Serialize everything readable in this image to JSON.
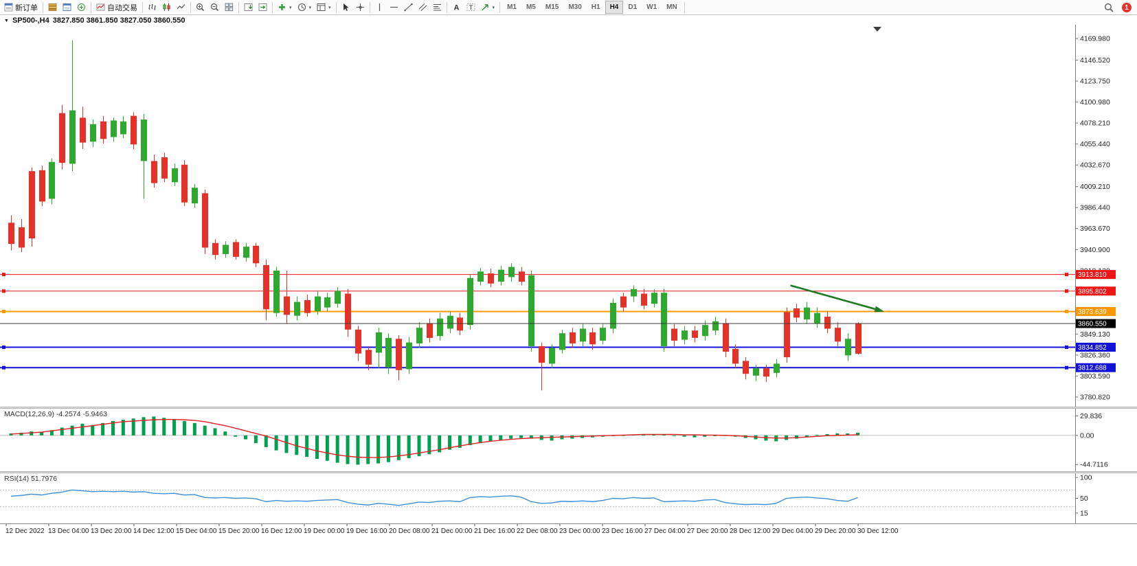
{
  "toolbar": {
    "items": [
      {
        "name": "new-order-button",
        "icon": "new-order",
        "label": "新订单"
      },
      {
        "name": "sep"
      },
      {
        "name": "market-watch-button",
        "icon": "market-watch"
      },
      {
        "name": "data-window-button",
        "icon": "data-window"
      },
      {
        "name": "navigator-button",
        "icon": "navigator"
      },
      {
        "name": "sep"
      },
      {
        "name": "autotrading-button",
        "icon": "autotrading",
        "label": "自动交易"
      },
      {
        "name": "sep"
      },
      {
        "name": "bar-chart-button",
        "icon": "bars"
      },
      {
        "name": "candlestick-chart-button",
        "icon": "candles"
      },
      {
        "name": "line-chart-button",
        "icon": "line"
      },
      {
        "name": "sep"
      },
      {
        "name": "zoom-in-button",
        "icon": "zoom-in"
      },
      {
        "name": "zoom-out-button",
        "icon": "zoom-out"
      },
      {
        "name": "tile-windows-button",
        "icon": "tile"
      },
      {
        "name": "sep"
      },
      {
        "name": "auto-scroll-button",
        "icon": "auto-scroll"
      },
      {
        "name": "chart-shift-button",
        "icon": "chart-shift"
      },
      {
        "name": "sep"
      },
      {
        "name": "add-indicator-button",
        "icon": "indicator-plus",
        "caret": true
      },
      {
        "name": "period-selector-button",
        "icon": "clock",
        "caret": true
      },
      {
        "name": "template-button",
        "icon": "template",
        "caret": true
      },
      {
        "name": "sep"
      },
      {
        "name": "cursor-button",
        "icon": "cursor"
      },
      {
        "name": "crosshair-button",
        "icon": "crosshair"
      },
      {
        "name": "sep"
      },
      {
        "name": "vertical-line-button",
        "icon": "vline"
      },
      {
        "name": "horizontal-line-button",
        "icon": "hline"
      },
      {
        "name": "trendline-button",
        "icon": "trend"
      },
      {
        "name": "channel-button",
        "icon": "channel"
      },
      {
        "name": "fibonacci-button",
        "icon": "fibo"
      },
      {
        "name": "sep"
      },
      {
        "name": "text-button",
        "icon": "text"
      },
      {
        "name": "text-label-button",
        "icon": "label"
      },
      {
        "name": "arrows-shapes-button",
        "icon": "shapes",
        "caret": true
      },
      {
        "name": "sep"
      }
    ],
    "timeframes": [
      {
        "label": "M1"
      },
      {
        "label": "M5"
      },
      {
        "label": "M15"
      },
      {
        "label": "M30"
      },
      {
        "label": "H1"
      },
      {
        "label": "H4",
        "active": true
      },
      {
        "label": "D1"
      },
      {
        "label": "W1"
      },
      {
        "label": "MN"
      }
    ],
    "notification_count": "1"
  },
  "chart": {
    "symbol_period": "SP500-,H4",
    "ohlc_text": "3827.850 3861.850 3827.050 3860.550"
  },
  "chart_data": {
    "type": "candlestick",
    "symbol": "SP500-",
    "period": "H4",
    "ohlc": {
      "open": 3827.85,
      "high": 3861.85,
      "low": 3827.05,
      "close": 3860.55
    },
    "colors": {
      "red_candle": "#e53228",
      "green_candle": "#2fa82f",
      "macd_histogram": "#00a050",
      "macd_signal": "#e02020",
      "rsi_line": "#3e8fd8",
      "arrow": "#1f7a24",
      "current_price_line": "#3c3c3c",
      "current_price_tag": "#000000"
    },
    "candle_format": [
      "high",
      "low",
      "body_top",
      "body_bottom",
      "color(r=red,g=green)"
    ],
    "candles": [
      [
        3978,
        3940,
        3970,
        3947,
        "r"
      ],
      [
        3974,
        3938,
        3965,
        3943,
        "r"
      ],
      [
        4030,
        3944,
        4026,
        3953,
        "r"
      ],
      [
        4032,
        3988,
        4027,
        3993,
        "r"
      ],
      [
        4040,
        3990,
        4036,
        3996,
        "g"
      ],
      [
        4098,
        4028,
        4089,
        4035,
        "r"
      ],
      [
        4168,
        4026,
        4092,
        4034,
        "g"
      ],
      [
        4096,
        4050,
        4084,
        4057,
        "r"
      ],
      [
        4082,
        4052,
        4077,
        4058,
        "g"
      ],
      [
        4086,
        4056,
        4080,
        4061,
        "r"
      ],
      [
        4084,
        4058,
        4081,
        4063,
        "g"
      ],
      [
        4086,
        4062,
        4080,
        4066,
        "g"
      ],
      [
        4090,
        4050,
        4086,
        4055,
        "r"
      ],
      [
        4088,
        3996,
        4082,
        4037,
        "g"
      ],
      [
        4044,
        4008,
        4037,
        4013,
        "r"
      ],
      [
        4046,
        4014,
        4041,
        4018,
        "r"
      ],
      [
        4034,
        4010,
        4029,
        4014,
        "g"
      ],
      [
        4038,
        3988,
        4033,
        3992,
        "r"
      ],
      [
        4012,
        3986,
        4008,
        3991,
        "g"
      ],
      [
        4006,
        3936,
        4002,
        3943,
        "r"
      ],
      [
        3952,
        3930,
        3948,
        3935,
        "r"
      ],
      [
        3950,
        3932,
        3946,
        3936,
        "g"
      ],
      [
        3952,
        3930,
        3949,
        3933,
        "r"
      ],
      [
        3948,
        3928,
        3944,
        3932,
        "g"
      ],
      [
        3948,
        3922,
        3945,
        3926,
        "r"
      ],
      [
        3930,
        3864,
        3924,
        3876,
        "r"
      ],
      [
        3922,
        3868,
        3918,
        3872,
        "g"
      ],
      [
        3918,
        3860,
        3890,
        3870,
        "r"
      ],
      [
        3890,
        3864,
        3884,
        3869,
        "g"
      ],
      [
        3892,
        3868,
        3886,
        3872,
        "r"
      ],
      [
        3896,
        3870,
        3890,
        3874,
        "g"
      ],
      [
        3894,
        3874,
        3889,
        3878,
        "g"
      ],
      [
        3900,
        3878,
        3896,
        3882,
        "g"
      ],
      [
        3898,
        3846,
        3893,
        3854,
        "r"
      ],
      [
        3858,
        3820,
        3854,
        3828,
        "r"
      ],
      [
        3836,
        3810,
        3832,
        3816,
        "r"
      ],
      [
        3856,
        3812,
        3851,
        3829,
        "g"
      ],
      [
        3850,
        3806,
        3845,
        3813,
        "g"
      ],
      [
        3848,
        3799,
        3844,
        3810,
        "r"
      ],
      [
        3846,
        3806,
        3840,
        3811,
        "g"
      ],
      [
        3862,
        3834,
        3856,
        3839,
        "g"
      ],
      [
        3866,
        3840,
        3861,
        3845,
        "r"
      ],
      [
        3872,
        3842,
        3866,
        3847,
        "g"
      ],
      [
        3874,
        3850,
        3869,
        3855,
        "g"
      ],
      [
        3872,
        3848,
        3867,
        3853,
        "r"
      ],
      [
        3914,
        3854,
        3910,
        3859,
        "g"
      ],
      [
        3921,
        3902,
        3917,
        3906,
        "g"
      ],
      [
        3920,
        3900,
        3915,
        3904,
        "r"
      ],
      [
        3923,
        3902,
        3919,
        3906,
        "g"
      ],
      [
        3926,
        3906,
        3922,
        3911,
        "g"
      ],
      [
        3922,
        3902,
        3917,
        3906,
        "r"
      ],
      [
        3918,
        3830,
        3913,
        3836,
        "g"
      ],
      [
        3840,
        3788,
        3836,
        3818,
        "r"
      ],
      [
        3838,
        3812,
        3834,
        3817,
        "g"
      ],
      [
        3854,
        3828,
        3850,
        3832,
        "g"
      ],
      [
        3856,
        3834,
        3851,
        3839,
        "r"
      ],
      [
        3860,
        3836,
        3855,
        3841,
        "g"
      ],
      [
        3856,
        3832,
        3851,
        3838,
        "r"
      ],
      [
        3860,
        3838,
        3856,
        3842,
        "g"
      ],
      [
        3888,
        3850,
        3883,
        3855,
        "g"
      ],
      [
        3894,
        3874,
        3890,
        3878,
        "r"
      ],
      [
        3902,
        3884,
        3898,
        3890,
        "g"
      ],
      [
        3898,
        3876,
        3893,
        3880,
        "r"
      ],
      [
        3898,
        3878,
        3894,
        3882,
        "g"
      ],
      [
        3898,
        3830,
        3894,
        3836,
        "g"
      ],
      [
        3860,
        3836,
        3855,
        3842,
        "r"
      ],
      [
        3858,
        3838,
        3853,
        3843,
        "g"
      ],
      [
        3858,
        3840,
        3853,
        3845,
        "r"
      ],
      [
        3864,
        3842,
        3859,
        3847,
        "g"
      ],
      [
        3868,
        3848,
        3863,
        3853,
        "g"
      ],
      [
        3866,
        3824,
        3861,
        3830,
        "r"
      ],
      [
        3838,
        3812,
        3833,
        3817,
        "r"
      ],
      [
        3824,
        3800,
        3820,
        3806,
        "r"
      ],
      [
        3816,
        3798,
        3812,
        3804,
        "g"
      ],
      [
        3816,
        3797,
        3812,
        3803,
        "r"
      ],
      [
        3822,
        3802,
        3817,
        3807,
        "g"
      ],
      [
        3878,
        3818,
        3873,
        3824,
        "r"
      ],
      [
        3882,
        3862,
        3877,
        3867,
        "r"
      ],
      [
        3884,
        3860,
        3878,
        3865,
        "g"
      ],
      [
        3878,
        3856,
        3872,
        3861,
        "g"
      ],
      [
        3874,
        3850,
        3868,
        3855,
        "r"
      ],
      [
        3862,
        3836,
        3856,
        3841,
        "r"
      ],
      [
        3850,
        3820,
        3844,
        3826,
        "g"
      ],
      [
        3861.85,
        3827.05,
        3860.55,
        3827.85,
        "r"
      ]
    ],
    "price_axis": {
      "max": 4184.95,
      "min": 3770.35,
      "ticks": [
        4169.98,
        4146.52,
        4123.75,
        4100.98,
        4078.21,
        4055.44,
        4032.67,
        4009.21,
        3986.44,
        3963.67,
        3940.9,
        3918.13,
        3895.36,
        3872.59,
        3849.13,
        3826.36,
        3803.59,
        3780.82
      ]
    },
    "hlines": [
      {
        "price": 3913.81,
        "label": "3913.810",
        "color": "#f01414",
        "width": 1
      },
      {
        "price": 3895.802,
        "label": "3895.802",
        "color": "#f01414",
        "width": 1
      },
      {
        "price": 3873.639,
        "label": "3873.639",
        "color": "#ff9800",
        "width": 2
      },
      {
        "price": 3834.852,
        "label": "3834.852",
        "color": "#1212d8",
        "width": 2
      },
      {
        "price": 3812.688,
        "label": "3812.688",
        "color": "#1212d8",
        "width": 2
      }
    ],
    "current_price": {
      "price": 3860.55,
      "label": "3860.550"
    },
    "arrow": {
      "from_bar": 76.4,
      "from_price": 3902,
      "to_bar": 85.6,
      "to_price": 3873.5
    },
    "time_labels": [
      "12 Dec 2022",
      "13 Dec 04:00",
      "13 Dec 20:00",
      "14 Dec 12:00",
      "15 Dec 04:00",
      "15 Dec 20:00",
      "16 Dec 12:00",
      "19 Dec 00:00",
      "19 Dec 16:00",
      "20 Dec 08:00",
      "21 Dec 00:00",
      "21 Dec 16:00",
      "22 Dec 08:00",
      "23 Dec 00:00",
      "23 Dec 16:00",
      "27 Dec 04:00",
      "27 Dec 20:00",
      "28 Dec 12:00",
      "29 Dec 04:00",
      "29 Dec 20:00",
      "30 Dec 12:00"
    ],
    "macd": {
      "title": "MACD(12,26,9)",
      "values": "-4.2574 -5.9463",
      "axis_labels": [
        {
          "v": 29.836,
          "t": "29.836"
        },
        {
          "v": 0,
          "t": "0.00"
        },
        {
          "v": -44.7116,
          "t": "-44.7116"
        }
      ],
      "range": {
        "max": 41,
        "min": -55
      },
      "histogram": [
        3,
        4,
        6,
        5,
        8,
        12,
        15,
        18,
        16,
        19,
        22,
        24,
        26,
        28,
        29,
        27,
        25,
        22,
        19,
        15,
        11,
        6,
        -2,
        -6,
        -12,
        -18,
        -23,
        -27,
        -30,
        -33,
        -36,
        -39,
        -42,
        -44,
        -45,
        -44,
        -43,
        -41,
        -38,
        -35,
        -32,
        -29,
        -26,
        -22,
        -19,
        -15,
        -12,
        -9,
        -7,
        -5,
        -4,
        -5,
        -7,
        -8,
        -6,
        -5,
        -4,
        -3,
        -2,
        -1,
        0,
        1,
        2,
        2,
        1,
        -1,
        -2,
        -3,
        -2,
        -1,
        0,
        -2,
        -4,
        -6,
        -8,
        -9,
        -7,
        -5,
        -2,
        1,
        2,
        3,
        3,
        4
      ],
      "signal": [
        2,
        3,
        4,
        5,
        7,
        9,
        11,
        13,
        15,
        17,
        19,
        21,
        22,
        23,
        24,
        24.5,
        24.5,
        24,
        23,
        21,
        18,
        15,
        11,
        7,
        3,
        -1,
        -6,
        -11,
        -16,
        -20,
        -24,
        -27,
        -30,
        -32,
        -33.5,
        -34,
        -34,
        -33,
        -31.5,
        -29.5,
        -27,
        -24.5,
        -22,
        -19,
        -16,
        -13.5,
        -11,
        -9,
        -7.5,
        -6,
        -5,
        -4,
        -3.5,
        -3,
        -2.5,
        -2,
        -1.5,
        -1,
        -0.5,
        0,
        0.5,
        1,
        1.5,
        1.5,
        1.5,
        1.5,
        1,
        1,
        0.5,
        0.5,
        0,
        -0.5,
        -1.5,
        -2.5,
        -3.5,
        -4,
        -4,
        -3.5,
        -2.5,
        -1.5,
        -0.5,
        0,
        0.5,
        1
      ]
    },
    "rsi": {
      "title": "RSI(14)",
      "value": "51.7976",
      "axis_labels": [
        {
          "v": 100,
          "t": "100"
        },
        {
          "v": 50,
          "t": "50"
        },
        {
          "v": 15,
          "t": "15"
        }
      ],
      "range": {
        "max": 110,
        "min": -10
      },
      "levels": [
        70,
        30
      ],
      "line": [
        55,
        57,
        60,
        58,
        62,
        65,
        70,
        68,
        66,
        67,
        66,
        67,
        65,
        66,
        62,
        61,
        62,
        58,
        59,
        52,
        51,
        52,
        50,
        51,
        49,
        42,
        45,
        43,
        44,
        43,
        45,
        46,
        47,
        40,
        36,
        34,
        38,
        36,
        33,
        37,
        41,
        40,
        43,
        44,
        42,
        52,
        54,
        53,
        55,
        56,
        53,
        42,
        38,
        39,
        43,
        42,
        44,
        42,
        45,
        50,
        49,
        52,
        50,
        51,
        42,
        43,
        44,
        43,
        46,
        47,
        40,
        37,
        35,
        36,
        35,
        38,
        50,
        52,
        53,
        51,
        49,
        45,
        43,
        51.8
      ]
    }
  }
}
